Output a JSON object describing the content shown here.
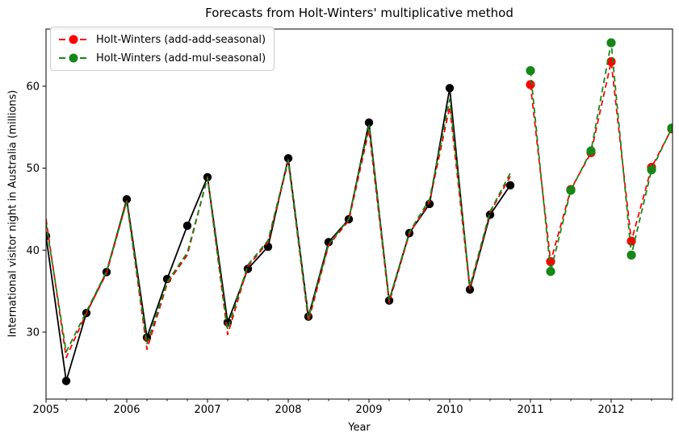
{
  "chart_data": {
    "type": "line",
    "title": "Forecasts from Holt-Winters' multiplicative method",
    "xlabel": "Year",
    "ylabel": "International visitor night in Australia (millions)",
    "xlim": [
      2005,
      2012.76
    ],
    "ylim": [
      21.83,
      66.98
    ],
    "x_ticks": [
      2005,
      2006,
      2007,
      2008,
      2009,
      2010,
      2011,
      2012
    ],
    "x_minor_tick_step": 0.25,
    "y_ticks": [
      30,
      40,
      50,
      60
    ],
    "grid": false,
    "legend_position": "upper-left",
    "legend": [
      {
        "label": "Holt-Winters (add-add-seasonal)",
        "color": "#ff0000"
      },
      {
        "label": "Holt-Winters (add-mul-seasonal)",
        "color": "#168716"
      }
    ],
    "series": [
      {
        "name": "observed",
        "color": "#000000",
        "style": "solid",
        "markers": true,
        "x": [
          2005.0,
          2005.25,
          2005.5,
          2005.75,
          2006.0,
          2006.25,
          2006.5,
          2006.75,
          2007.0,
          2007.25,
          2007.5,
          2007.75,
          2008.0,
          2008.25,
          2008.5,
          2008.75,
          2009.0,
          2009.25,
          2009.5,
          2009.75,
          2010.0,
          2010.25,
          2010.5,
          2010.75
        ],
        "y": [
          41.73,
          24.04,
          32.33,
          37.33,
          46.21,
          29.35,
          36.48,
          42.98,
          48.9,
          31.18,
          37.72,
          40.42,
          51.21,
          31.89,
          40.98,
          43.77,
          55.56,
          33.85,
          42.08,
          45.64,
          59.77,
          35.19,
          44.32,
          47.91
        ]
      },
      {
        "name": "fitted-add-add-seasonal",
        "color": "#ff0000",
        "style": "dashed",
        "markers": false,
        "x": [
          2005.0,
          2005.25,
          2005.5,
          2005.75,
          2006.0,
          2006.25,
          2006.5,
          2006.75,
          2007.0,
          2007.25,
          2007.5,
          2007.75,
          2008.0,
          2008.25,
          2008.5,
          2008.75,
          2009.0,
          2009.25,
          2009.5,
          2009.75,
          2010.0,
          2010.25,
          2010.5,
          2010.75
        ],
        "y": [
          43.8,
          26.9,
          32.3,
          37.2,
          46.0,
          27.9,
          35.9,
          39.4,
          48.9,
          29.7,
          38.0,
          41.0,
          50.8,
          31.3,
          40.6,
          43.6,
          54.7,
          33.6,
          42.0,
          45.9,
          57.5,
          35.3,
          44.6,
          49.0
        ]
      },
      {
        "name": "fitted-add-mul-seasonal",
        "color": "#168716",
        "style": "dashed",
        "markers": false,
        "x": [
          2005.0,
          2005.25,
          2005.5,
          2005.75,
          2006.0,
          2006.25,
          2006.5,
          2006.75,
          2007.0,
          2007.25,
          2007.5,
          2007.75,
          2008.0,
          2008.25,
          2008.5,
          2008.75,
          2009.0,
          2009.25,
          2009.5,
          2009.75,
          2010.0,
          2010.25,
          2010.5,
          2010.75
        ],
        "y": [
          43.3,
          27.6,
          32.5,
          37.4,
          45.9,
          28.6,
          36.1,
          39.7,
          48.8,
          30.3,
          38.2,
          41.2,
          51.0,
          31.7,
          40.7,
          43.8,
          55.2,
          33.9,
          42.2,
          46.2,
          58.4,
          35.6,
          44.7,
          49.4
        ]
      },
      {
        "name": "forecast-add-add-seasonal",
        "color": "#ff0000",
        "style": "dashed",
        "markers": true,
        "x": [
          2011.0,
          2011.25,
          2011.5,
          2011.75,
          2012.0,
          2012.25,
          2012.5,
          2012.75
        ],
        "y": [
          60.2,
          38.6,
          47.4,
          51.9,
          63.0,
          41.1,
          50.1,
          54.8
        ]
      },
      {
        "name": "forecast-add-mul-seasonal",
        "color": "#168716",
        "style": "dashed",
        "markers": true,
        "x": [
          2011.0,
          2011.25,
          2011.5,
          2011.75,
          2012.0,
          2012.25,
          2012.5,
          2012.75
        ],
        "y": [
          61.9,
          37.4,
          47.3,
          52.1,
          65.3,
          39.4,
          49.8,
          54.9
        ]
      }
    ]
  }
}
